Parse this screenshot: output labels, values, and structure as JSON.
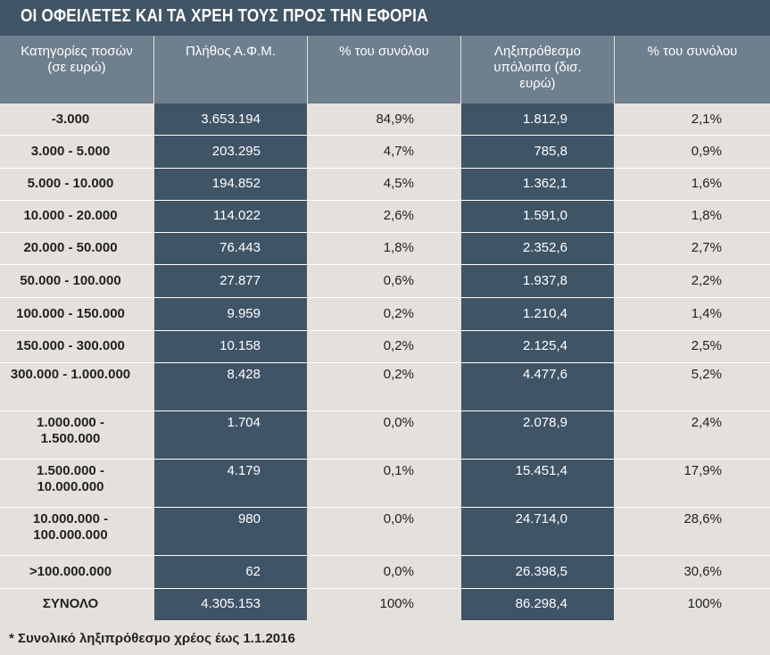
{
  "title": "ΟΙ ΟΦΕΙΛΕΤΕΣ ΚΑΙ ΤΑ ΧΡΕΗ ΤΟΥΣ ΠΡΟΣ ΤΗΝ ΕΦΟΡΙΑ",
  "footnote": "* Συνολικό ληξιπρόθεσμο χρέος έως 1.1.2016",
  "colors": {
    "title_bg": "#3f5465",
    "header_bg": "#6e7f8d",
    "dark_column": "#3f5465",
    "page_bg": "#e4e1dc"
  },
  "chart_data": {
    "type": "table",
    "columns": [
      "Κατηγορίες ποσών (σε ευρώ)",
      "Πλήθος Α.Φ.Μ.",
      "% του συνόλου",
      "Ληξιπρόθεσμο υπόλοιπο (δισ. ευρώ)",
      "% του συνόλου"
    ],
    "rows": [
      [
        "-3.000",
        "3.653.194",
        "84,9%",
        "1.812,9",
        "2,1%"
      ],
      [
        "3.000 - 5.000",
        "203.295",
        "4,7%",
        "785,8",
        "0,9%"
      ],
      [
        "5.000 - 10.000",
        "194.852",
        "4,5%",
        "1.362,1",
        "1,6%"
      ],
      [
        "10.000 - 20.000",
        "114.022",
        "2,6%",
        "1.591,0",
        "1,8%"
      ],
      [
        "20.000 - 50.000",
        "76.443",
        "1,8%",
        "2.352,6",
        "2,7%"
      ],
      [
        "50.000 - 100.000",
        "27.877",
        "0,6%",
        "1.937,8",
        "2,2%"
      ],
      [
        "100.000 - 150.000",
        "9.959",
        "0,2%",
        "1.210,4",
        "1,4%"
      ],
      [
        "150.000 - 300.000",
        "10.158",
        "0,2%",
        "2.125,4",
        "2,5%"
      ],
      [
        "300.000 - 1.000.000",
        "8.428",
        "0,2%",
        "4.477,6",
        "5,2%"
      ],
      [
        "1.000.000 - 1.500.000",
        "1.704",
        "0,0%",
        "2.078,9",
        "2,4%"
      ],
      [
        "1.500.000 - 10.000.000",
        "4.179",
        "0,1%",
        "15.451,4",
        "17,9%"
      ],
      [
        "10.000.000 - 100.000.000",
        "980",
        "0,0%",
        "24.714,0",
        "28,6%"
      ],
      [
        ">100.000.000",
        "62",
        "0,0%",
        "26.398,5",
        "30,6%"
      ],
      [
        "ΣΥΝΟΛΟ",
        "4.305.153",
        "100%",
        "86.298,4",
        "100%"
      ]
    ]
  }
}
